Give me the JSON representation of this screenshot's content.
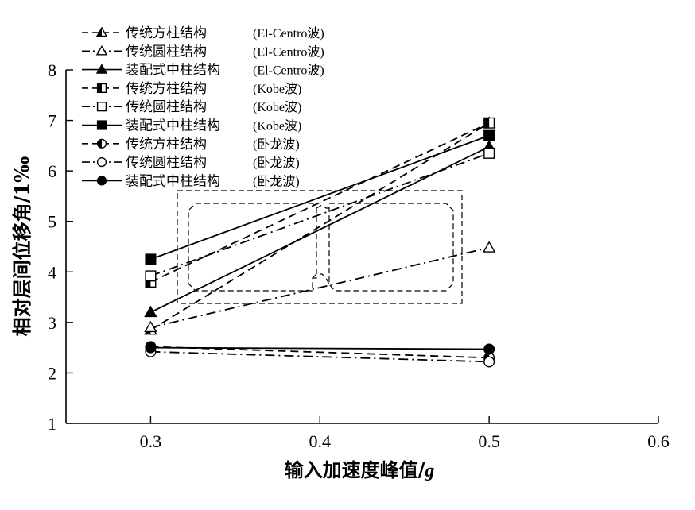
{
  "chart_data": {
    "type": "line",
    "xlabel_prefix": "输入加速度峰值/",
    "xlabel_unit": "g",
    "ylabel": "相对层间位移角/1‰",
    "x_ticks": [
      "0.3",
      "0.4",
      "0.5",
      "0.6"
    ],
    "y_ticks": [
      "1",
      "2",
      "3",
      "4",
      "5",
      "6",
      "7",
      "8"
    ],
    "xlim": [
      0.25,
      0.6
    ],
    "ylim": [
      1,
      8
    ],
    "grid": false,
    "legend_position": "top-left",
    "x": [
      0.3,
      0.5
    ],
    "series": [
      {
        "name": "传统方柱结构",
        "wave": "(El-Centro波)",
        "values": [
          2.85,
          6.95
        ],
        "line": "dashed",
        "marker": "triangle-half"
      },
      {
        "name": "传统圆柱结构",
        "wave": "(El-Centro波)",
        "values": [
          2.9,
          4.48
        ],
        "line": "dashdot",
        "marker": "triangle-open"
      },
      {
        "name": "装配式中柱结构",
        "wave": "(El-Centro波)",
        "values": [
          3.2,
          6.48
        ],
        "line": "solid",
        "marker": "triangle-filled"
      },
      {
        "name": "传统方柱结构",
        "wave": "(Kobe波)",
        "values": [
          3.8,
          6.95
        ],
        "line": "dashed",
        "marker": "square-half"
      },
      {
        "name": "传统圆柱结构",
        "wave": "(Kobe波)",
        "values": [
          3.92,
          6.35
        ],
        "line": "dashdot",
        "marker": "square-open"
      },
      {
        "name": "装配式中柱结构",
        "wave": "(Kobe波)",
        "values": [
          4.25,
          6.7
        ],
        "line": "solid",
        "marker": "square-filled"
      },
      {
        "name": "传统方柱结构",
        "wave": "(卧龙波)",
        "values": [
          2.52,
          2.3
        ],
        "line": "dashed",
        "marker": "circle-half"
      },
      {
        "name": "传统圆柱结构",
        "wave": "(卧龙波)",
        "values": [
          2.42,
          2.22
        ],
        "line": "dashdot",
        "marker": "circle-open"
      },
      {
        "name": "装配式中柱结构",
        "wave": "(卧龙波)",
        "values": [
          2.5,
          2.47
        ],
        "line": "solid",
        "marker": "circle-filled"
      }
    ]
  }
}
